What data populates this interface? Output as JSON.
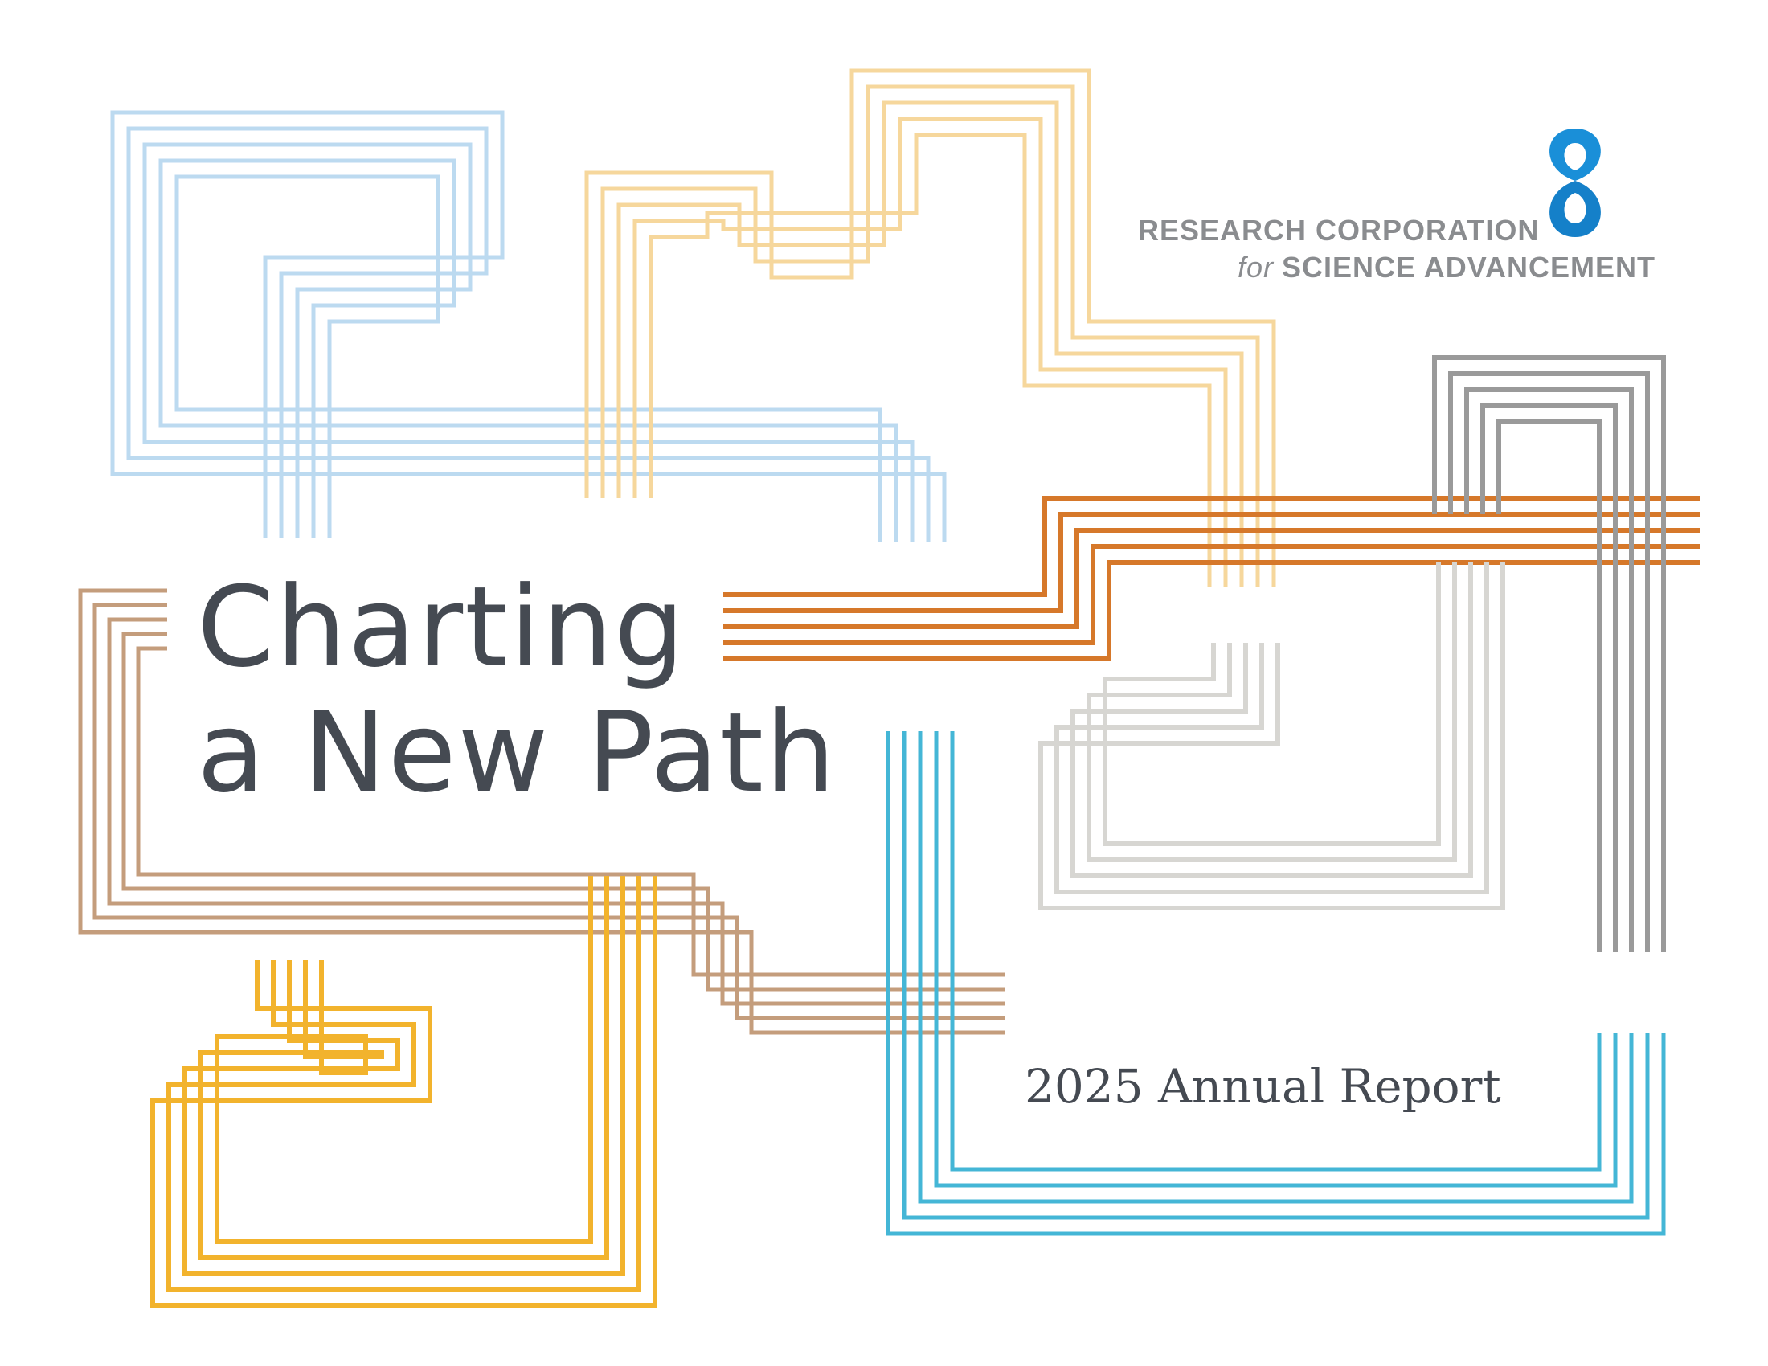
{
  "colors": {
    "light_blue": "#bcdaf0",
    "light_gold": "#f6d79c",
    "orange": "#d6782a",
    "gray": "#9a9a9a",
    "light_gray": "#d7d6d2",
    "tan": "#c49d7c",
    "gold": "#f2b32d",
    "cyan": "#44b6d6",
    "text": "#454a52",
    "logo_blue": "#1a8fd8",
    "logo_gray": "#8a8c8f"
  },
  "organization": {
    "line1": "RESEARCH CORPORATION",
    "line2_prefix": "for",
    "line2": "SCIENCE ADVANCEMENT",
    "logo_icon": "figure-eight-logo-icon"
  },
  "title": {
    "line1": "Charting",
    "line2": "a New Path"
  },
  "subtitle": "2025 Annual Report"
}
